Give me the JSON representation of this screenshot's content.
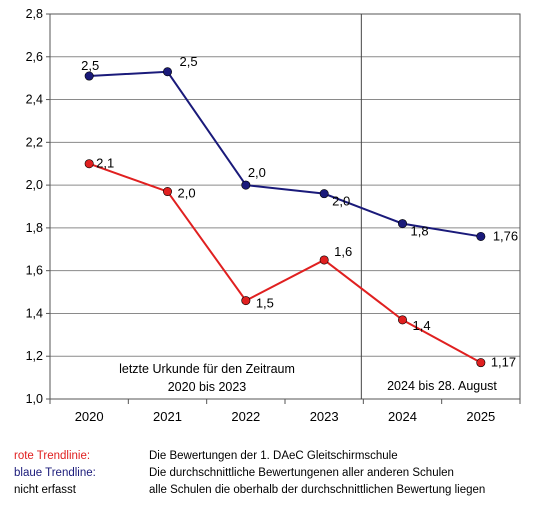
{
  "chart_data": {
    "type": "line",
    "categories": [
      "2020",
      "2021",
      "2022",
      "2023",
      "2024",
      "2025"
    ],
    "ylim": [
      1.0,
      2.8
    ],
    "yticks": [
      "1,0",
      "1,2",
      "1,4",
      "1,6",
      "1,8",
      "2,0",
      "2,2",
      "2,4",
      "2,6",
      "2,8"
    ],
    "grid": true,
    "series": [
      {
        "color": "#1a1a7a",
        "values": [
          2.51,
          2.53,
          2.0,
          1.96,
          1.82,
          1.76
        ],
        "labels": [
          "2,5",
          "2,5",
          "2,0",
          "2,0",
          "1,8",
          "1,76"
        ]
      },
      {
        "color": "#e02020",
        "values": [
          2.1,
          1.97,
          1.46,
          1.65,
          1.37,
          1.17
        ],
        "labels": [
          "2,1",
          "2,0",
          "1,5",
          "1,6",
          "1,4",
          "1,17"
        ]
      }
    ],
    "divider_after_category": "2023",
    "annotations": [
      "letzte Urkunde für den Zeitraum",
      "2020 bis 2023",
      "2024 bis 28. August"
    ]
  },
  "legend": [
    {
      "key": "rote Trendlinie:",
      "key_color": "#e02020",
      "desc": "Die Bewertungen der 1. DAeC Gleitschirmschule"
    },
    {
      "key": "blaue Trendline:",
      "key_color": "#1a1a7a",
      "desc": "Die durchschnittliche Bewertungenen aller anderen Schulen"
    },
    {
      "key": "nicht erfasst",
      "key_color": "#000000",
      "desc": "alle Schulen die oberhalb der durchschnittlichen Bewertung liegen"
    }
  ]
}
